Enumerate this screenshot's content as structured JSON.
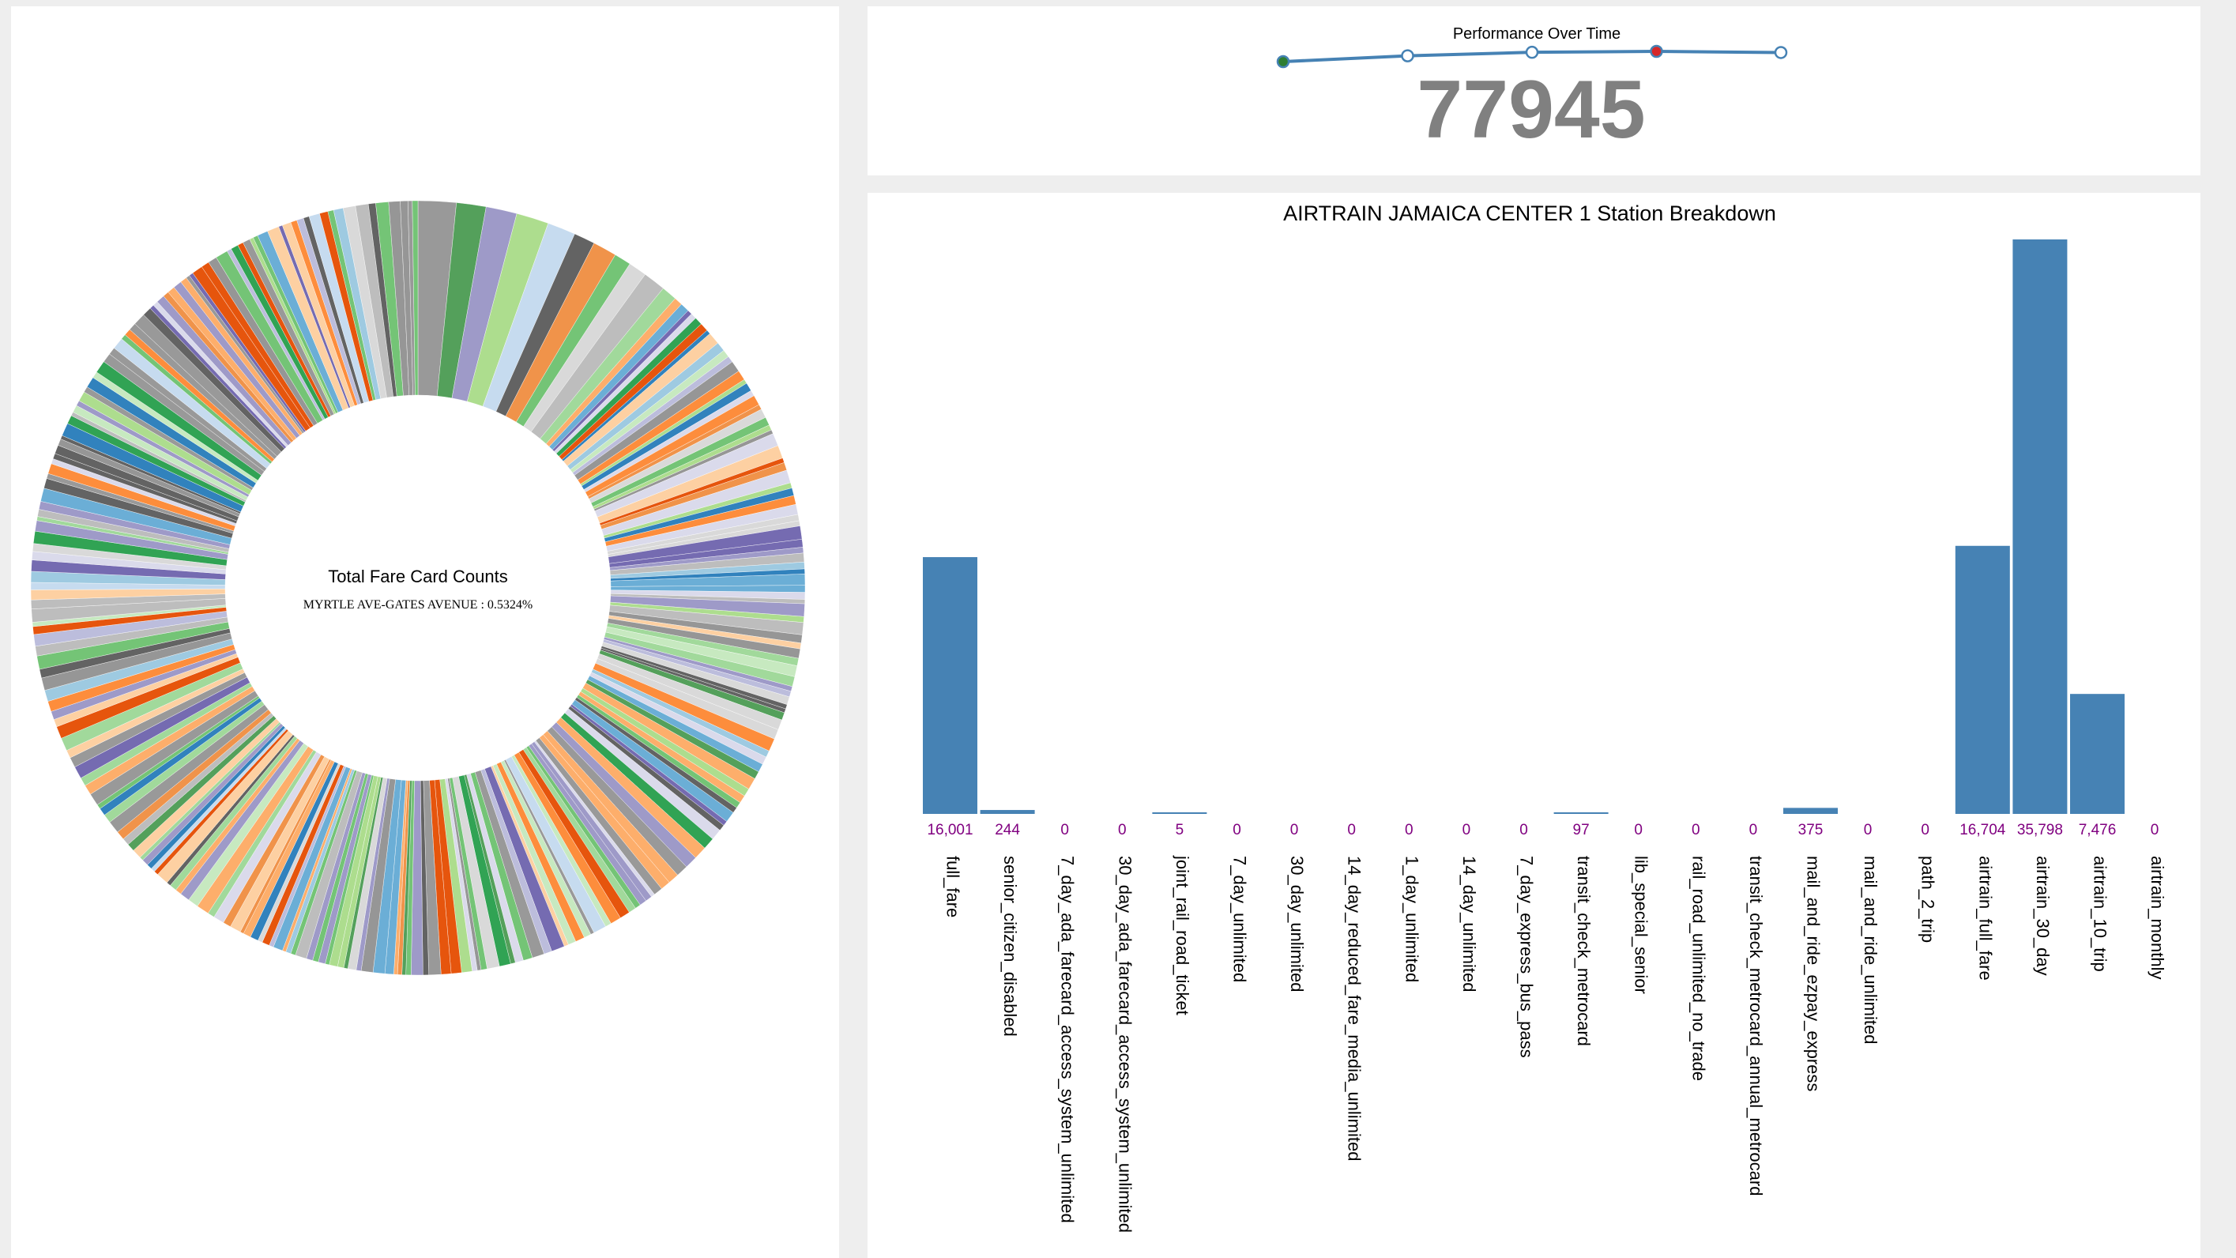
{
  "colors": {
    "page_bg": "#eeeeee",
    "panel_bg": "#ffffff",
    "bar": "#4682b4",
    "value_label": "#800080",
    "kpi_number": "#808080",
    "kpi_line": "#4682b4",
    "kpi_first_point": "#2e7d32",
    "kpi_highlight_point": "#d62728",
    "donut_palette": [
      "#999999",
      "#54a05b",
      "#9e9ac8",
      "#addd8e",
      "#c6dbef",
      "#636363",
      "#f0934a",
      "#74c476",
      "#d9d9d9",
      "#bdbdbd",
      "#a1d99b",
      "#fdae6b",
      "#6baed6",
      "#756bb1",
      "#dadaeb",
      "#31a354",
      "#e6550d",
      "#3182bd",
      "#fdd0a2",
      "#9ecae1",
      "#c7e9c0",
      "#bcbddc",
      "#969696",
      "#fd8d3c"
    ]
  },
  "donut": {
    "center_title": "Total Fare Card Counts",
    "center_subtitle": "MYRTLE AVE-GATES AVENUE : 0.5324%"
  },
  "kpi": {
    "sparkline_title": "Performance Over Time",
    "value": "77945",
    "sparkline_values": [
      80.0,
      82.5,
      84.0,
      84.4,
      83.9
    ],
    "highlight_index": 3
  },
  "chart_data": {
    "type": "bar",
    "title": "AIRTRAIN JAMAICA CENTER 1 Station Breakdown",
    "xlabel": "",
    "ylabel": "",
    "ylim": [
      0,
      35798
    ],
    "categories": [
      "full_fare",
      "senior_citizen_disabled",
      "7_day_ada_farecard_access_system_unlimited",
      "30_day_ada_farecard_access_system_unlimited",
      "joint_rail_road_ticket",
      "7_day_unlimited",
      "30_day_unlimited",
      "14_day_reduced_fare_media_unlimited",
      "1_day_unlimited",
      "14_day_unlimited",
      "7_day_express_bus_pass",
      "transit_check_metrocard",
      "lib_special_senior",
      "rail_road_unlimited_no_trade",
      "transit_check_metrocard_annual_metrocard",
      "mail_and_ride_ezpay_express",
      "mail_and_ride_unlimited",
      "path_2_trip",
      "airtrain_full_fare",
      "airtrain_30_day",
      "airtrain_10_trip",
      "airtrain_monthly"
    ],
    "values": [
      16001,
      244,
      0,
      0,
      5,
      0,
      0,
      0,
      0,
      0,
      0,
      97,
      0,
      0,
      0,
      375,
      0,
      0,
      16704,
      35798,
      7476,
      0
    ],
    "value_labels": [
      "16,001",
      "244",
      "0",
      "0",
      "5",
      "0",
      "0",
      "0",
      "0",
      "0",
      "0",
      "97",
      "0",
      "0",
      "0",
      "375",
      "0",
      "0",
      "16,704",
      "35,798",
      "7,476",
      "0"
    ]
  }
}
